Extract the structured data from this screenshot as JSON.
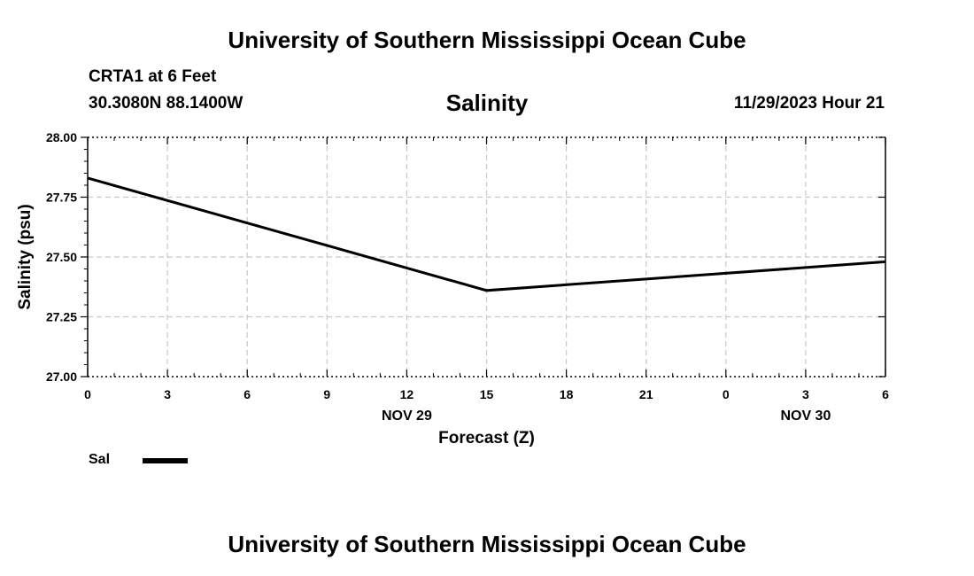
{
  "header": {
    "title": "University of Southern Mississippi Ocean Cube",
    "station": "CRTA1 at 6 Feet",
    "coords": "30.3080N  88.1400W",
    "datetime": "11/29/2023 Hour 21",
    "footer_title": "University of Southern Mississippi Ocean Cube"
  },
  "chart_data": {
    "type": "line",
    "title": "Salinity",
    "xlabel": "Forecast (Z)",
    "ylabel": "Salinity (psu)",
    "x_ticks": [
      "0",
      "3",
      "6",
      "9",
      "12",
      "15",
      "18",
      "21",
      "0",
      "3",
      "6"
    ],
    "date_labels": [
      {
        "label": "NOV 29",
        "at_tick": 4
      },
      {
        "label": "NOV 30",
        "at_tick": 9
      }
    ],
    "ylim": [
      27.0,
      28.0
    ],
    "y_ticks": [
      "27.00",
      "27.25",
      "27.50",
      "27.75",
      "28.00"
    ],
    "grid": true,
    "series": [
      {
        "name": "Sal",
        "color": "#000000",
        "x": [
          0,
          15,
          30
        ],
        "values": [
          27.83,
          27.36,
          27.48
        ]
      }
    ],
    "legend": "bottom-left"
  }
}
